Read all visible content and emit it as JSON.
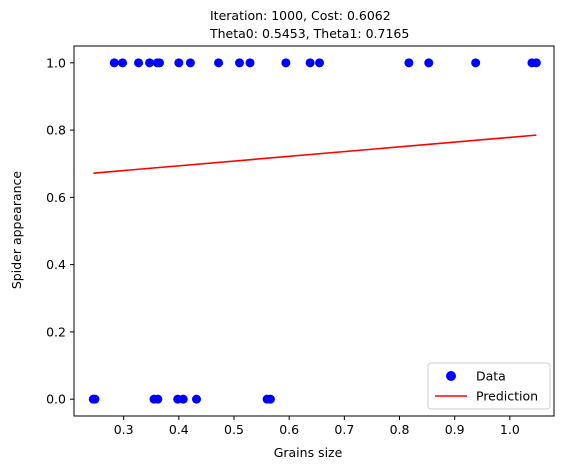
{
  "chart_data": {
    "type": "scatter",
    "title_lines": [
      "Iteration: 1000, Cost: 0.6062",
      "Theta0: 0.5453, Theta1: 0.7165"
    ],
    "xlabel": "Grains size",
    "ylabel": "Spider appearance",
    "xlim": [
      0.21,
      1.08
    ],
    "ylim": [
      -0.05,
      1.05
    ],
    "xticks": [
      0.3,
      0.4,
      0.5,
      0.6,
      0.7,
      0.8,
      0.9,
      1.0
    ],
    "xtick_labels": [
      "0.3",
      "0.4",
      "0.5",
      "0.6",
      "0.7",
      "0.8",
      "0.9",
      "1.0"
    ],
    "yticks": [
      0.0,
      0.2,
      0.4,
      0.6,
      0.8,
      1.0
    ],
    "ytick_labels": [
      "0.0",
      "0.2",
      "0.4",
      "0.6",
      "0.8",
      "1.0"
    ],
    "grid": false,
    "legend_position": "lower-right",
    "series": [
      {
        "name": "Data",
        "kind": "scatter",
        "color": "#0000ff",
        "x": [
          0.283,
          0.298,
          0.327,
          0.347,
          0.361,
          0.365,
          0.4,
          0.421,
          0.472,
          0.51,
          0.529,
          0.594,
          0.638,
          0.655,
          0.817,
          0.853,
          0.938,
          1.04,
          1.048,
          0.245,
          0.248,
          0.355,
          0.362,
          0.398,
          0.408,
          0.432,
          0.56,
          0.566
        ],
        "y": [
          1,
          1,
          1,
          1,
          1,
          1,
          1,
          1,
          1,
          1,
          1,
          1,
          1,
          1,
          1,
          1,
          1,
          1,
          1,
          0,
          0,
          0,
          0,
          0,
          0,
          0,
          0,
          0
        ]
      },
      {
        "name": "Prediction",
        "kind": "line",
        "color": "#ff0000",
        "x": [
          0.245,
          1.048
        ],
        "y": [
          0.672,
          0.785
        ]
      }
    ]
  }
}
